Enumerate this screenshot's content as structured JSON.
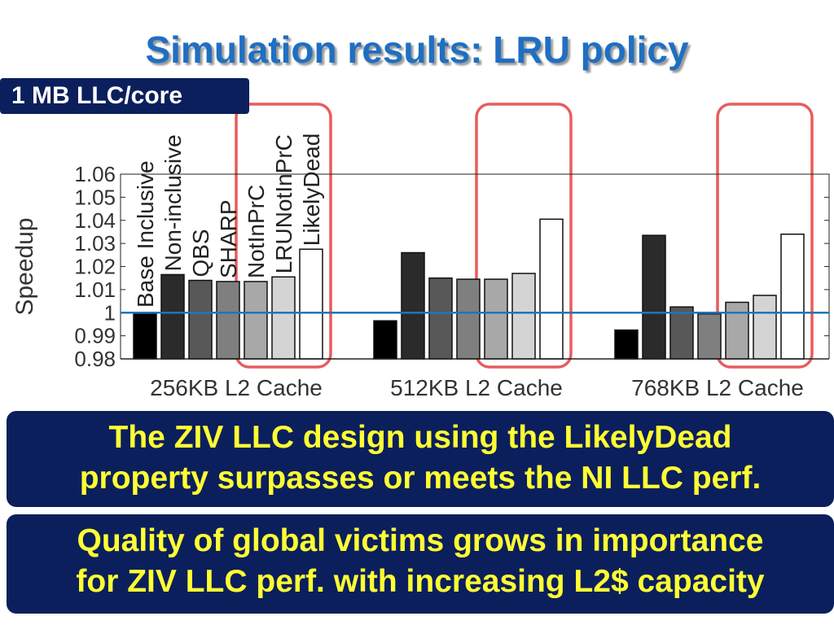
{
  "slide": {
    "title": "Simulation results: LRU policy",
    "badge": "1 MB LLC/core",
    "box1_line1": "The ZIV LLC design using the LikelyDead",
    "box1_line2": "property surpasses or meets the NI LLC perf.",
    "box2_line1": "Quality of global victims grows in importance",
    "box2_line2": "for ZIV LLC perf. with increasing L2$ capacity"
  },
  "colors": {
    "title": "#1f6fc2",
    "panel_bg": "#0b1f5c",
    "panel_text": "#ffff33",
    "highlight": "#e85c5c",
    "baseline": "#1f77b4"
  },
  "chart_data": {
    "type": "bar",
    "ylabel": "Speedup",
    "ylim": [
      0.98,
      1.06
    ],
    "yticks": [
      "0.98",
      "0.99",
      "1",
      "1.01",
      "1.02",
      "1.03",
      "1.04",
      "1.05",
      "1.06"
    ],
    "ytick_values": [
      0.98,
      0.99,
      1.0,
      1.01,
      1.02,
      1.03,
      1.04,
      1.05,
      1.06
    ],
    "baseline": 1.0,
    "categories": [
      "256KB L2 Cache",
      "512KB L2 Cache",
      "768KB L2 Cache"
    ],
    "highlighted_series": [
      "NotInPrC",
      "LRUNotInPrC",
      "LikelyDead"
    ],
    "series": [
      {
        "name": "Base Inclusive",
        "color": "#000000",
        "values": [
          1.0,
          0.9965,
          0.9925
        ]
      },
      {
        "name": "Non-inclusive",
        "color": "#2b2b2b",
        "values": [
          1.0165,
          1.026,
          1.0335
        ]
      },
      {
        "name": "QBS",
        "color": "#585858",
        "values": [
          1.014,
          1.015,
          1.0025
        ]
      },
      {
        "name": "SHARP",
        "color": "#7f7f7f",
        "values": [
          1.0135,
          1.0145,
          0.9995
        ]
      },
      {
        "name": "NotInPrC",
        "color": "#a8a8a8",
        "values": [
          1.0135,
          1.0145,
          1.0045
        ]
      },
      {
        "name": "LRUNotInPrC",
        "color": "#d4d4d4",
        "values": [
          1.0155,
          1.017,
          1.0075
        ]
      },
      {
        "name": "LikelyDead",
        "color": "#ffffff",
        "values": [
          1.0275,
          1.0405,
          1.034
        ]
      }
    ]
  }
}
